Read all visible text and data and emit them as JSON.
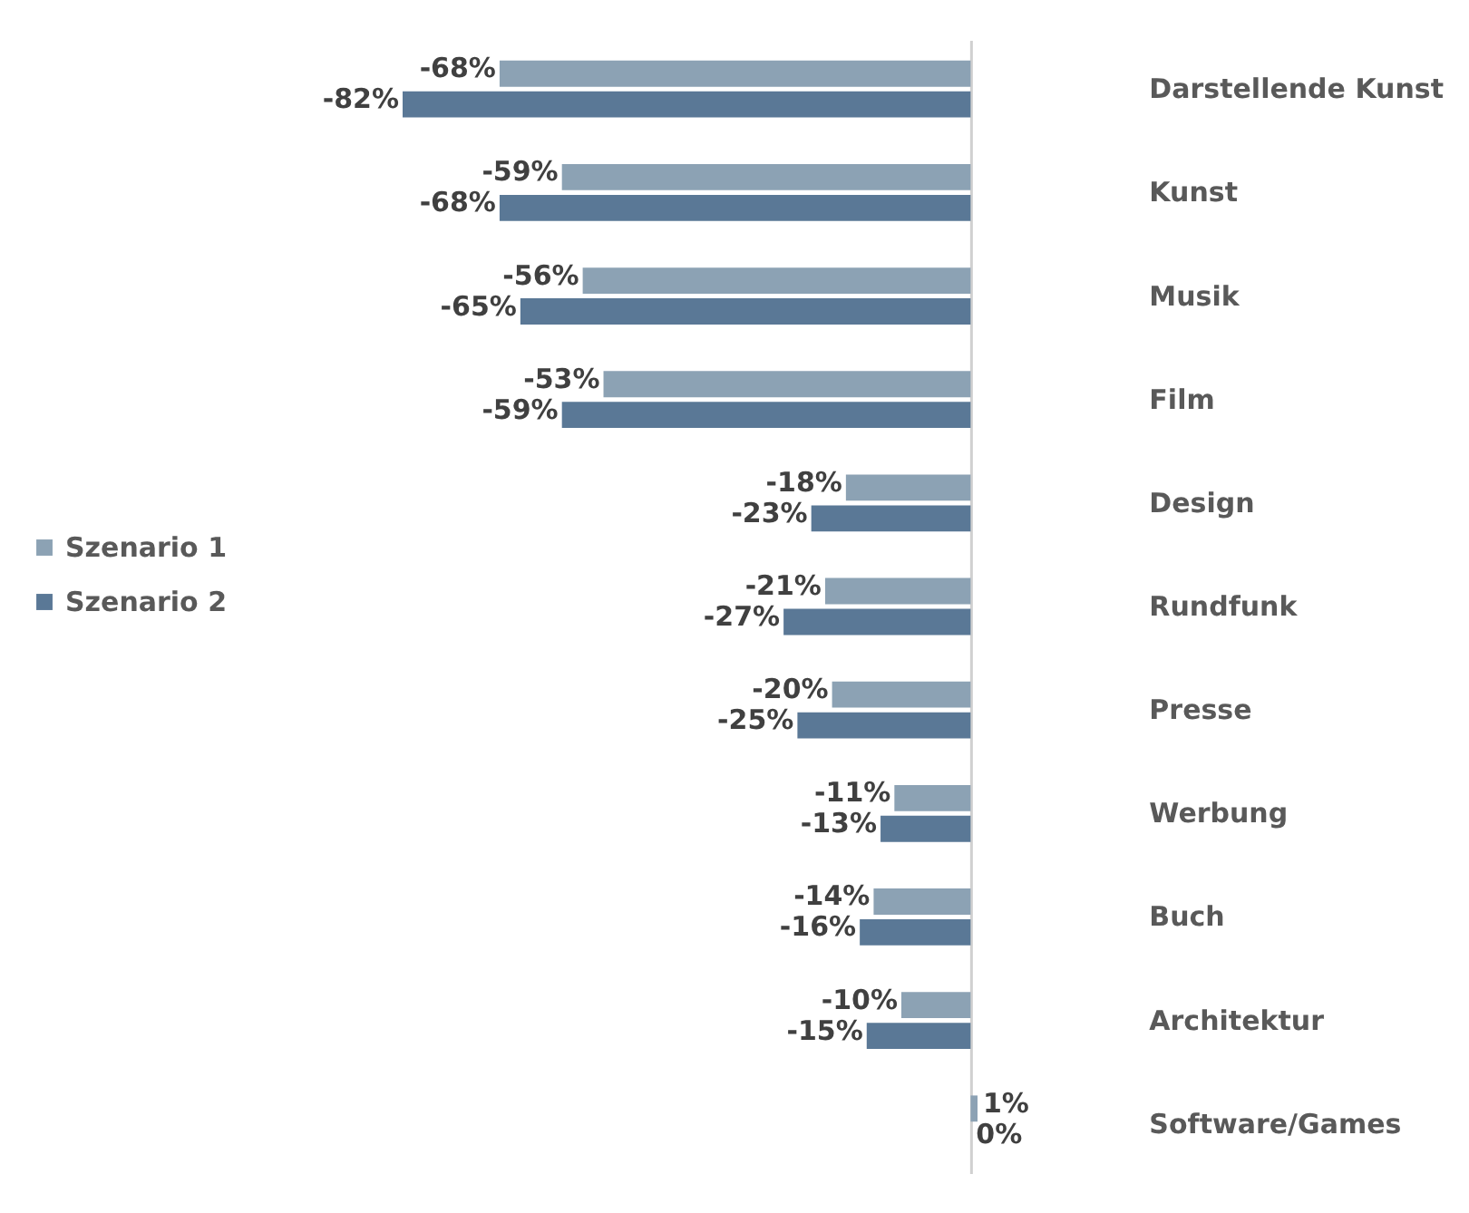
{
  "chart_data": {
    "type": "bar",
    "orientation": "horizontal",
    "legend": "left",
    "categories": [
      "Darstellende Kunst",
      "Kunst",
      "Musik",
      "Film",
      "Design",
      "Rundfunk",
      "Presse",
      "Werbung",
      "Buch",
      "Architektur",
      "Software/Games"
    ],
    "series": [
      {
        "name": "Szenario 1",
        "color": "#8ca2b4",
        "values": [
          -68,
          -59,
          -56,
          -53,
          -18,
          -21,
          -20,
          -11,
          -14,
          -10,
          1
        ],
        "value_labels": [
          "-68%",
          "-59%",
          "-56%",
          "-53%",
          "-18%",
          "-21%",
          "-20%",
          "-11%",
          "-14%",
          "-10%",
          "1%"
        ]
      },
      {
        "name": "Szenario 2",
        "color": "#5a7896",
        "values": [
          -82,
          -68,
          -65,
          -59,
          -23,
          -27,
          -25,
          -13,
          -16,
          -15,
          0
        ],
        "value_labels": [
          "-82%",
          "-68%",
          "-65%",
          "-59%",
          "-23%",
          "-27%",
          "-25%",
          "-13%",
          "-16%",
          "-15%",
          "0%"
        ]
      }
    ]
  }
}
